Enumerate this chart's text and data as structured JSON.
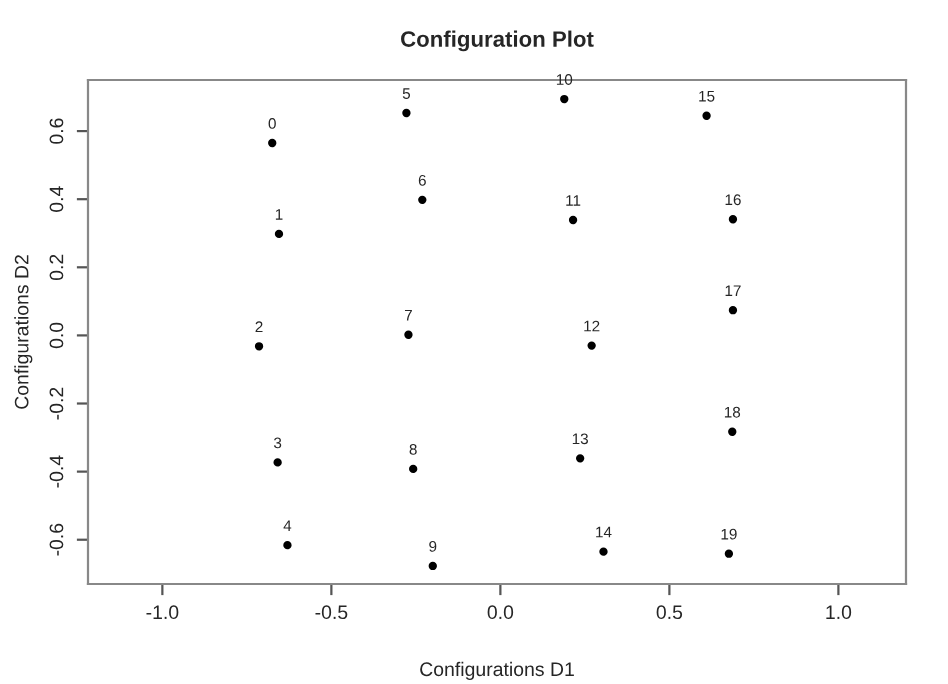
{
  "chart_data": {
    "type": "scatter",
    "title": "Configuration Plot",
    "xlabel": "Configurations D1",
    "ylabel": "Configurations D2",
    "x": [
      -0.675,
      -0.655,
      -0.714,
      -0.659,
      -0.63,
      -0.278,
      -0.231,
      -0.272,
      -0.258,
      -0.2,
      0.189,
      0.215,
      0.27,
      0.236,
      0.305,
      0.61,
      0.688,
      0.688,
      0.686,
      0.676
    ],
    "values": [
      0.565,
      0.298,
      -0.032,
      -0.373,
      -0.616,
      0.653,
      0.398,
      0.002,
      -0.392,
      -0.677,
      0.694,
      0.339,
      -0.03,
      -0.361,
      -0.635,
      0.645,
      0.341,
      0.074,
      -0.283,
      -0.641
    ],
    "color": "#000000",
    "marker": "circle",
    "grid": false,
    "legend": false,
    "annotations": [
      {
        "text": "0",
        "x": -0.675,
        "y": 0.565
      },
      {
        "text": "1",
        "x": -0.655,
        "y": 0.298
      },
      {
        "text": "2",
        "x": -0.714,
        "y": -0.032
      },
      {
        "text": "3",
        "x": -0.659,
        "y": -0.373
      },
      {
        "text": "4",
        "x": -0.63,
        "y": -0.616
      },
      {
        "text": "5",
        "x": -0.278,
        "y": 0.653
      },
      {
        "text": "6",
        "x": -0.231,
        "y": 0.398
      },
      {
        "text": "7",
        "x": -0.272,
        "y": 0.002
      },
      {
        "text": "8",
        "x": -0.258,
        "y": -0.392
      },
      {
        "text": "9",
        "x": -0.2,
        "y": -0.677
      },
      {
        "text": "10",
        "x": 0.189,
        "y": 0.694
      },
      {
        "text": "11",
        "x": 0.215,
        "y": 0.339
      },
      {
        "text": "12",
        "x": 0.27,
        "y": -0.03
      },
      {
        "text": "13",
        "x": 0.236,
        "y": -0.361
      },
      {
        "text": "14",
        "x": 0.305,
        "y": -0.635
      },
      {
        "text": "15",
        "x": 0.61,
        "y": 0.645
      },
      {
        "text": "16",
        "x": 0.688,
        "y": 0.341
      },
      {
        "text": "17",
        "x": 0.688,
        "y": 0.074
      },
      {
        "text": "18",
        "x": 0.686,
        "y": -0.283
      },
      {
        "text": "19",
        "x": 0.676,
        "y": -0.641
      }
    ],
    "xlim": [
      -1.22,
      1.2
    ],
    "ylim": [
      -0.73,
      0.75
    ],
    "xticks": [
      {
        "value": -1.0,
        "label": "-1.0"
      },
      {
        "value": -0.5,
        "label": "-0.5"
      },
      {
        "value": 0.0,
        "label": "0.0"
      },
      {
        "value": 0.5,
        "label": "0.5"
      },
      {
        "value": 1.0,
        "label": "1.0"
      }
    ],
    "yticks": [
      {
        "value": -0.6,
        "label": "-0.6"
      },
      {
        "value": -0.4,
        "label": "-0.4"
      },
      {
        "value": -0.2,
        "label": "-0.2"
      },
      {
        "value": 0.0,
        "label": "0.0"
      },
      {
        "value": 0.2,
        "label": "0.2"
      },
      {
        "value": 0.4,
        "label": "0.4"
      },
      {
        "value": 0.6,
        "label": "0.6"
      }
    ]
  }
}
